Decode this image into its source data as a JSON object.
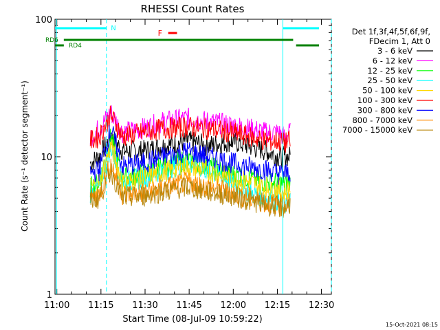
{
  "chart_data": {
    "type": "line",
    "title": "RHESSI Count Rates",
    "xlabel": "Start Time (08-Jul-09 10:59:22)",
    "ylabel": "Count Rate (s⁻¹ detector segment⁻¹)",
    "x_range_minutes_after_start": [
      0,
      94
    ],
    "ylim": [
      1,
      100
    ],
    "yscale": "log",
    "x_ticks": [
      "11:00",
      "11:15",
      "11:30",
      "11:45",
      "12:00",
      "12:15",
      "12:30"
    ],
    "y_ticks": [
      "1",
      "10",
      "100"
    ],
    "legend_header": [
      "Det 1f,3f,4f,5f,6f,9f,",
      "FDecim 1, Att 0"
    ],
    "legend_position": "right",
    "timestamp": "15-Oct-2021 08:15",
    "markers": {
      "N": "N",
      "F": "F",
      "RD6": "RD6",
      "RD4": "RD4"
    },
    "series": [
      {
        "name": "3 - 6 keV",
        "color": "#000000",
        "values": [
          null,
          9,
          10,
          14,
          11,
          11,
          12,
          13,
          12,
          13,
          12,
          11,
          10,
          10,
          10,
          null
        ]
      },
      {
        "name": "6 - 12 keV",
        "color": "#ff00ff",
        "values": [
          null,
          14,
          16,
          21,
          15,
          16,
          18,
          19,
          18,
          17,
          16,
          15,
          15,
          14,
          15,
          null
        ]
      },
      {
        "name": "12 - 25 keV",
        "color": "#00ff00",
        "values": [
          null,
          6,
          6.5,
          14,
          7,
          7.5,
          8.5,
          9.5,
          8.5,
          7.5,
          7,
          6.5,
          6.5,
          6.3,
          6.5,
          null
        ]
      },
      {
        "name": "25 - 50 keV",
        "color": "#00ffff",
        "values": [
          null,
          5.5,
          6,
          12,
          6.5,
          7,
          8,
          9,
          8,
          6.5,
          5.5,
          5,
          4.8,
          4.5,
          5,
          null
        ]
      },
      {
        "name": "50 - 100 keV",
        "color": "#ffd700",
        "values": [
          null,
          6,
          6.5,
          12,
          6.5,
          7,
          7.8,
          8.5,
          7.8,
          7,
          6.5,
          6,
          5.8,
          5.5,
          6,
          null
        ]
      },
      {
        "name": "100 - 300 keV",
        "color": "#ff0000",
        "values": [
          null,
          13,
          14,
          20,
          14,
          15,
          16,
          16.5,
          16,
          15,
          14,
          13,
          13,
          12.5,
          13,
          null
        ]
      },
      {
        "name": "300 - 800 keV",
        "color": "#0000ff",
        "values": [
          null,
          7.5,
          8,
          16,
          8.5,
          9,
          10,
          11,
          10,
          9,
          8.5,
          8,
          7.5,
          7.5,
          7.8,
          null
        ]
      },
      {
        "name": "800 - 7000 keV",
        "color": "#ff8c00",
        "values": [
          null,
          5,
          5.3,
          9,
          5.3,
          5.5,
          6,
          6.5,
          6,
          5.5,
          5,
          4.6,
          4.5,
          4.3,
          4.8,
          null
        ]
      },
      {
        "name": "7000 - 15000 keV",
        "color": "#b8860b",
        "values": [
          null,
          4.8,
          5,
          8,
          5,
          5.2,
          5.6,
          6,
          5.6,
          5.2,
          4.8,
          4.5,
          4.3,
          4.2,
          4.6,
          null
        ]
      }
    ],
    "x": [
      0,
      12,
      15,
      19,
      23,
      30,
      37,
      45,
      52,
      60,
      66,
      72,
      76,
      78,
      80,
      94
    ],
    "grid": false
  }
}
